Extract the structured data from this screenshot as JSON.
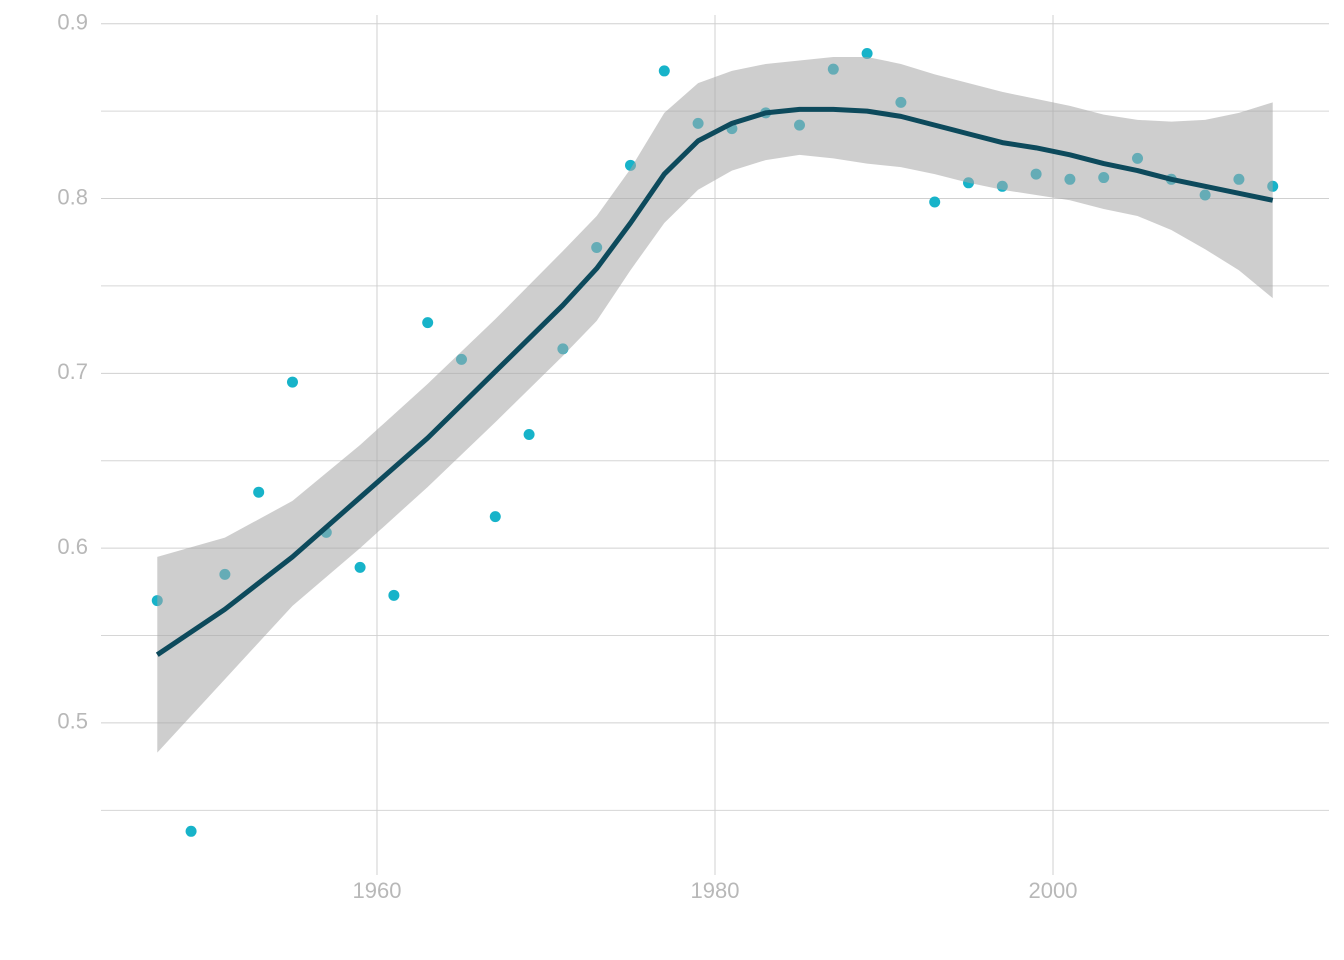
{
  "chart_data": {
    "type": "scatter",
    "xlim": [
      1943.67,
      2016.33
    ],
    "ylim": [
      0.413,
      0.905
    ],
    "xticks": [
      1960,
      1980,
      2000
    ],
    "yticks": [
      0.5,
      0.6,
      0.7,
      0.8,
      0.9
    ],
    "y_minor_ticks": [
      0.45,
      0.55,
      0.65,
      0.75,
      0.85
    ],
    "grid": true,
    "points": {
      "color": "#17b3c9",
      "x": [
        1947,
        1949,
        1951,
        1953,
        1955,
        1957,
        1959,
        1961,
        1963,
        1965,
        1967,
        1969,
        1971,
        1973,
        1975,
        1977,
        1979,
        1981,
        1983,
        1985,
        1987,
        1989,
        1991,
        1993,
        1995,
        1997,
        1999,
        2001,
        2003,
        2005,
        2007,
        2009,
        2011,
        2013
      ],
      "y": [
        0.57,
        0.438,
        0.585,
        0.632,
        0.695,
        0.609,
        0.589,
        0.573,
        0.729,
        0.708,
        0.618,
        0.665,
        0.714,
        0.772,
        0.819,
        0.873,
        0.843,
        0.84,
        0.849,
        0.842,
        0.874,
        0.883,
        0.855,
        0.798,
        0.809,
        0.807,
        0.814,
        0.811,
        0.812,
        0.823,
        0.811,
        0.802,
        0.811,
        0.807
      ]
    },
    "smooth": {
      "color": "#0d4a5c",
      "band_color": "#a6a6a6",
      "x": [
        1947,
        1951,
        1955,
        1959,
        1963,
        1967,
        1971,
        1973,
        1975,
        1977,
        1979,
        1981,
        1983,
        1985,
        1987,
        1989,
        1991,
        1993,
        1995,
        1997,
        1999,
        2001,
        2003,
        2005,
        2007,
        2009,
        2011,
        2013
      ],
      "y": [
        0.539,
        0.565,
        0.595,
        0.629,
        0.663,
        0.701,
        0.739,
        0.76,
        0.786,
        0.814,
        0.833,
        0.843,
        0.849,
        0.851,
        0.851,
        0.85,
        0.847,
        0.842,
        0.837,
        0.832,
        0.829,
        0.825,
        0.82,
        0.816,
        0.811,
        0.807,
        0.803,
        0.799
      ],
      "upper": [
        0.595,
        0.606,
        0.627,
        0.659,
        0.694,
        0.731,
        0.77,
        0.79,
        0.817,
        0.849,
        0.866,
        0.873,
        0.877,
        0.879,
        0.881,
        0.881,
        0.877,
        0.871,
        0.866,
        0.861,
        0.857,
        0.853,
        0.848,
        0.845,
        0.844,
        0.845,
        0.849,
        0.855
      ],
      "lower": [
        0.483,
        0.525,
        0.567,
        0.6,
        0.635,
        0.672,
        0.71,
        0.73,
        0.759,
        0.786,
        0.805,
        0.816,
        0.822,
        0.825,
        0.823,
        0.82,
        0.818,
        0.814,
        0.809,
        0.805,
        0.802,
        0.799,
        0.794,
        0.79,
        0.782,
        0.771,
        0.759,
        0.743
      ]
    }
  }
}
